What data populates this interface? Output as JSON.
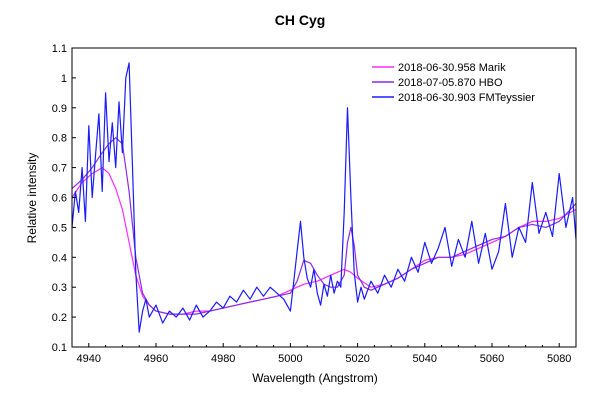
{
  "chart_data": {
    "type": "line",
    "title": "CH Cyg",
    "xlabel": "Wavelength (Angstrom)",
    "ylabel": "Relative intensity",
    "xlim": [
      4935,
      5085
    ],
    "ylim": [
      0.1,
      1.1
    ],
    "xticks": [
      4940,
      4960,
      4980,
      5000,
      5020,
      5040,
      5060,
      5080
    ],
    "yticks": [
      0.1,
      0.2,
      0.3,
      0.4,
      0.5,
      0.6,
      0.7,
      0.8,
      0.9,
      1,
      1.1
    ],
    "legend_position": "top-right",
    "grid": false,
    "series": [
      {
        "name": "2018-06-30.958 Marik",
        "color": "#ff2bff",
        "x": [
          4935,
          4938,
          4941,
          4944,
          4946,
          4948,
          4950,
          4952,
          4954,
          4956,
          4958,
          4960,
          4964,
          4968,
          4972,
          4976,
          4980,
          4984,
          4988,
          4992,
          4996,
          5000,
          5004,
          5008,
          5012,
          5016,
          5018,
          5020,
          5024,
          5028,
          5032,
          5036,
          5040,
          5044,
          5048,
          5052,
          5056,
          5060,
          5064,
          5068,
          5072,
          5076,
          5080,
          5085
        ],
        "y": [
          0.6,
          0.65,
          0.68,
          0.7,
          0.68,
          0.63,
          0.56,
          0.45,
          0.34,
          0.27,
          0.24,
          0.22,
          0.21,
          0.21,
          0.22,
          0.22,
          0.23,
          0.24,
          0.25,
          0.26,
          0.27,
          0.29,
          0.31,
          0.32,
          0.34,
          0.36,
          0.35,
          0.33,
          0.3,
          0.31,
          0.33,
          0.36,
          0.39,
          0.4,
          0.4,
          0.41,
          0.43,
          0.45,
          0.47,
          0.5,
          0.52,
          0.52,
          0.53,
          0.56
        ]
      },
      {
        "name": "2018-07-05.870 HBO",
        "color": "#8a2be2",
        "x": [
          4935,
          4938,
          4941,
          4944,
          4946,
          4948,
          4950,
          4952,
          4954,
          4956,
          4958,
          4960,
          4964,
          4968,
          4972,
          4976,
          4980,
          4984,
          4988,
          4992,
          4996,
          5000,
          5002,
          5004,
          5006,
          5008,
          5010,
          5012,
          5014,
          5016,
          5017,
          5018,
          5019,
          5020,
          5022,
          5024,
          5028,
          5032,
          5036,
          5040,
          5044,
          5048,
          5052,
          5056,
          5060,
          5064,
          5068,
          5072,
          5076,
          5080,
          5085
        ],
        "y": [
          0.63,
          0.66,
          0.7,
          0.75,
          0.78,
          0.8,
          0.78,
          0.62,
          0.4,
          0.28,
          0.24,
          0.22,
          0.21,
          0.21,
          0.21,
          0.22,
          0.23,
          0.24,
          0.25,
          0.26,
          0.27,
          0.28,
          0.32,
          0.39,
          0.38,
          0.34,
          0.31,
          0.3,
          0.3,
          0.34,
          0.45,
          0.5,
          0.44,
          0.34,
          0.3,
          0.29,
          0.31,
          0.33,
          0.36,
          0.38,
          0.4,
          0.4,
          0.42,
          0.44,
          0.46,
          0.47,
          0.5,
          0.51,
          0.5,
          0.52,
          0.58
        ]
      },
      {
        "name": "2018-06-30.903 FMTeyssier",
        "color": "#1a1aff",
        "x": [
          4935,
          4936,
          4937,
          4938,
          4939,
          4940,
          4941,
          4942,
          4943,
          4944,
          4945,
          4946,
          4947,
          4948,
          4949,
          4950,
          4951,
          4952,
          4953,
          4954,
          4955,
          4956,
          4957,
          4958,
          4960,
          4962,
          4964,
          4966,
          4968,
          4970,
          4972,
          4974,
          4976,
          4978,
          4980,
          4982,
          4984,
          4986,
          4988,
          4990,
          4992,
          4994,
          4996,
          4998,
          5000,
          5001,
          5002,
          5003,
          5004,
          5005,
          5006,
          5007,
          5008,
          5009,
          5010,
          5011,
          5012,
          5013,
          5014,
          5015,
          5016,
          5017,
          5018,
          5019,
          5020,
          5021,
          5022,
          5024,
          5026,
          5028,
          5030,
          5032,
          5034,
          5036,
          5038,
          5040,
          5042,
          5044,
          5046,
          5048,
          5050,
          5052,
          5054,
          5056,
          5058,
          5060,
          5062,
          5064,
          5066,
          5068,
          5070,
          5072,
          5074,
          5076,
          5078,
          5080,
          5082,
          5084,
          5085
        ],
        "y": [
          0.5,
          0.62,
          0.55,
          0.7,
          0.52,
          0.84,
          0.6,
          0.74,
          0.88,
          0.62,
          0.95,
          0.72,
          0.85,
          0.7,
          0.92,
          0.75,
          1.0,
          1.05,
          0.7,
          0.35,
          0.15,
          0.22,
          0.26,
          0.2,
          0.24,
          0.18,
          0.22,
          0.2,
          0.23,
          0.19,
          0.24,
          0.2,
          0.22,
          0.25,
          0.23,
          0.27,
          0.25,
          0.29,
          0.26,
          0.3,
          0.27,
          0.3,
          0.28,
          0.26,
          0.22,
          0.32,
          0.42,
          0.52,
          0.4,
          0.33,
          0.3,
          0.36,
          0.28,
          0.24,
          0.31,
          0.27,
          0.34,
          0.28,
          0.32,
          0.3,
          0.55,
          0.9,
          0.6,
          0.35,
          0.25,
          0.3,
          0.26,
          0.32,
          0.28,
          0.34,
          0.3,
          0.36,
          0.32,
          0.4,
          0.35,
          0.45,
          0.38,
          0.43,
          0.5,
          0.37,
          0.46,
          0.4,
          0.52,
          0.38,
          0.48,
          0.36,
          0.42,
          0.58,
          0.4,
          0.5,
          0.45,
          0.65,
          0.48,
          0.55,
          0.47,
          0.68,
          0.5,
          0.6,
          0.46
        ]
      }
    ]
  }
}
